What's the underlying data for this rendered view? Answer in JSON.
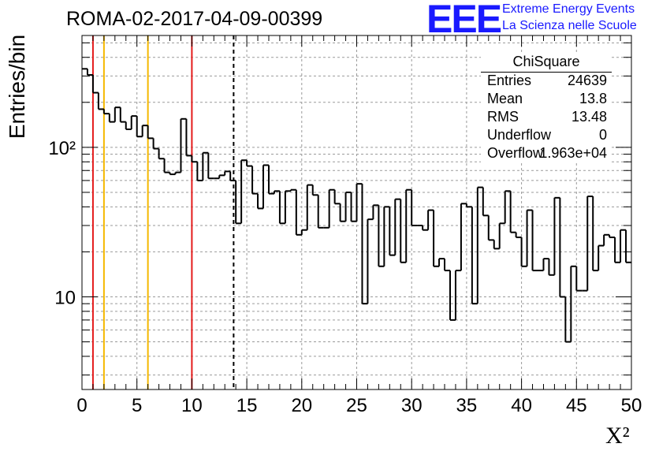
{
  "chart_data": {
    "type": "histogram-step",
    "title": "ROMA-02-2017-04-09-00399",
    "xlabel": "X²",
    "ylabel": "Entries/bin",
    "xlim": [
      0,
      50
    ],
    "ylim": [
      2.4,
      560
    ],
    "yscale": "log",
    "grid": true,
    "bin_width": 0.5,
    "x_ticks": [
      0,
      5,
      10,
      15,
      20,
      25,
      30,
      35,
      40,
      45,
      50
    ],
    "x_tick_labels": [
      "0",
      "5",
      "10",
      "15",
      "20",
      "25",
      "30",
      "35",
      "40",
      "45",
      "50"
    ],
    "y_ticks": [
      10,
      100
    ],
    "y_tick_labels": [
      "10",
      "10²"
    ],
    "bin_edges_start": 0,
    "values": [
      335,
      305,
      232,
      180,
      168,
      148,
      185,
      148,
      132,
      162,
      118,
      140,
      115,
      98,
      84,
      68,
      66,
      68,
      155,
      88,
      80,
      60,
      92,
      62,
      62,
      65,
      69,
      60,
      31,
      82,
      75,
      49,
      39,
      76,
      49,
      51,
      31,
      51,
      52,
      26,
      28,
      56,
      48,
      29,
      29,
      52,
      42,
      32,
      50,
      32,
      57,
      9,
      33,
      41,
      16,
      40,
      19,
      45,
      17,
      52,
      30,
      30,
      28,
      38,
      16,
      18,
      15,
      7,
      15,
      42,
      40,
      9,
      54,
      35,
      24,
      21,
      31,
      51,
      27,
      25,
      16,
      38,
      15,
      15,
      18,
      14,
      46,
      10,
      5,
      16,
      11,
      11,
      47,
      15,
      22,
      26,
      25,
      17,
      28,
      17,
      6,
      16,
      9,
      23,
      16,
      19,
      18,
      19,
      16,
      17,
      12,
      7,
      12,
      6,
      17,
      12,
      10,
      13,
      12,
      12,
      14,
      27,
      18,
      26,
      17,
      12,
      12,
      14,
      9,
      22,
      14,
      12,
      38,
      27,
      11,
      9,
      15,
      8,
      21,
      30,
      21,
      14,
      27,
      22,
      11,
      8,
      12,
      30,
      22,
      8,
      8,
      7,
      25,
      12,
      9,
      15,
      13,
      8,
      11,
      16,
      14,
      14,
      17,
      10,
      24,
      29,
      10,
      8,
      18,
      11,
      14,
      13,
      13,
      9,
      11,
      13,
      6,
      9,
      6,
      12,
      20,
      12,
      10,
      11,
      8,
      9,
      16,
      11,
      18,
      15,
      13,
      9,
      13,
      15,
      11,
      8,
      12,
      15,
      7,
      16
    ],
    "vertical_lines": [
      {
        "x": 1,
        "color": "#e41c1c",
        "style": "solid"
      },
      {
        "x": 2,
        "color": "#f5b800",
        "style": "solid"
      },
      {
        "x": 6,
        "color": "#f5b800",
        "style": "solid"
      },
      {
        "x": 10,
        "color": "#e41c1c",
        "style": "solid"
      },
      {
        "x": 13.8,
        "color": "#000000",
        "style": "dashed"
      }
    ],
    "colors": {
      "line": "#000000",
      "grid": "#9a9a9a",
      "logo": "#1a1aff"
    }
  },
  "logo": {
    "mark": "EEE",
    "line1": "Extreme Energy Events",
    "line2": "La Scienza nelle Scuole"
  },
  "stats": {
    "title": "ChiSquare",
    "rows": [
      {
        "label": "Entries",
        "value": "24639"
      },
      {
        "label": "Mean",
        "value": "13.8"
      },
      {
        "label": "RMS",
        "value": "13.48"
      },
      {
        "label": "Underflow",
        "value": "0"
      },
      {
        "label": "Overflow",
        "value": "1.963e+04"
      }
    ]
  }
}
